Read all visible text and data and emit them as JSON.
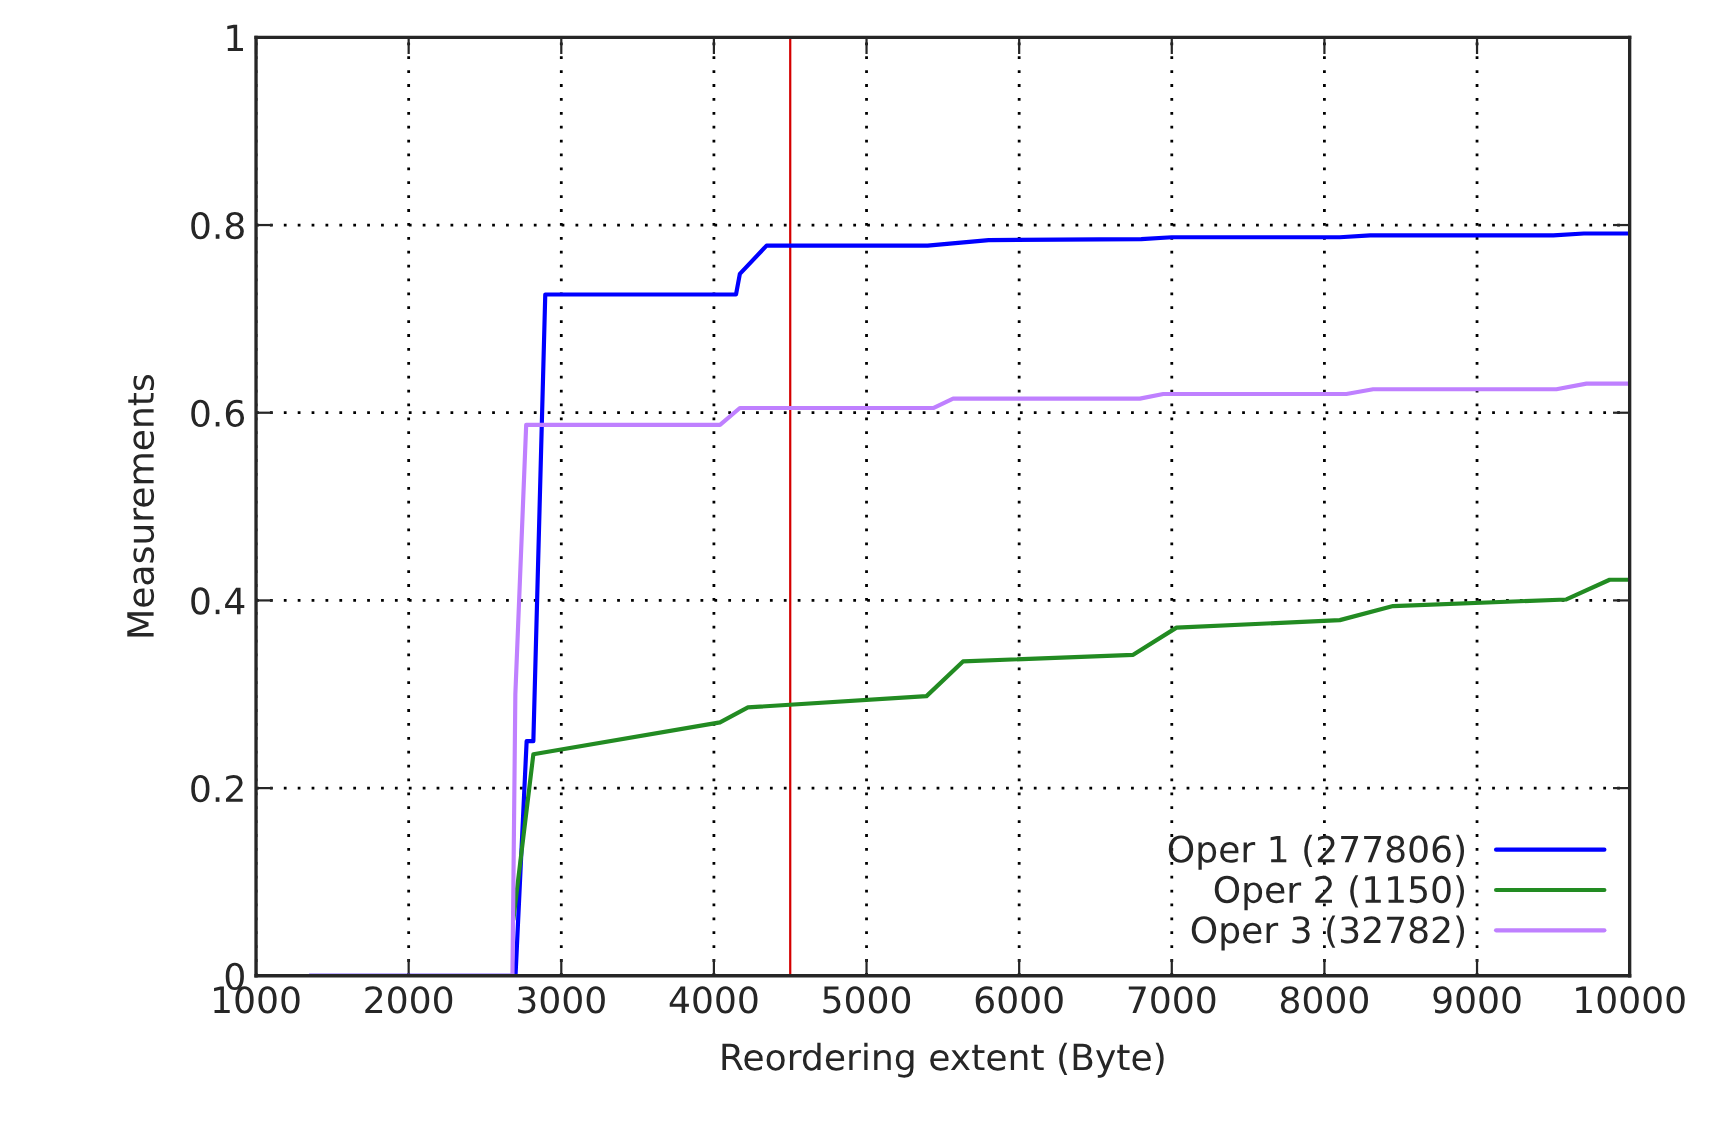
{
  "chart_data": {
    "type": "line",
    "xlabel": "Reordering extent (Byte)",
    "ylabel": "Measurements",
    "xlim": [
      1000,
      10000
    ],
    "xticks": [
      1000,
      2000,
      3000,
      4000,
      5000,
      6000,
      7000,
      8000,
      9000,
      10000
    ],
    "ylim": [
      0,
      1
    ],
    "yticks": [
      0,
      0.2,
      0.4,
      0.6,
      0.8,
      1
    ],
    "grid": true,
    "legend": "bottom right",
    "marker": "none",
    "line_style": "solid",
    "ref_lines": [
      {
        "axis": "x",
        "value": 4500,
        "color": "#d40000",
        "line_style": "solid"
      }
    ],
    "series": [
      {
        "name": "Oper 1 (277806)",
        "color": "#0000ff",
        "x": [
          1350,
          2700,
          2773,
          2817,
          2895,
          4145,
          4170,
          4345,
          5400,
          5600,
          5800,
          6800,
          7000,
          8100,
          8300,
          9500,
          9700,
          10000
        ],
        "values": [
          0,
          0,
          0.25,
          0.25,
          0.726,
          0.726,
          0.748,
          0.778,
          0.778,
          0.781,
          0.784,
          0.785,
          0.787,
          0.787,
          0.789,
          0.789,
          0.791,
          0.791
        ]
      },
      {
        "name": "Oper 2 (1150)",
        "color": "#228b22",
        "x": [
          2686,
          2817,
          4040,
          4223,
          5393,
          5632,
          6747,
          7031,
          8101,
          8450,
          9585,
          9869,
          10000
        ],
        "values": [
          0.06,
          0.236,
          0.27,
          0.286,
          0.298,
          0.335,
          0.342,
          0.371,
          0.379,
          0.394,
          0.401,
          0.422,
          0.422
        ]
      },
      {
        "name": "Oper 3 (32782)",
        "color": "#bf80ff",
        "x": [
          1350,
          2680,
          2699,
          2770,
          4040,
          4170,
          5437,
          5567,
          6791,
          6944,
          8144,
          8319,
          9520,
          9717,
          10000
        ],
        "values": [
          0,
          0,
          0.3,
          0.587,
          0.587,
          0.605,
          0.605,
          0.615,
          0.615,
          0.62,
          0.62,
          0.625,
          0.625,
          0.631,
          0.631
        ]
      }
    ]
  }
}
